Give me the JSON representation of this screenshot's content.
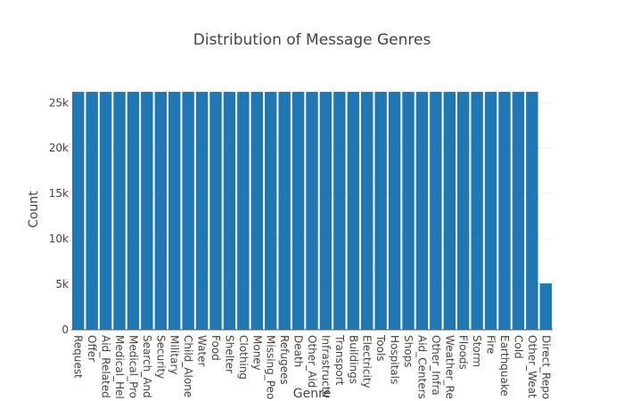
{
  "chart_data": {
    "type": "bar",
    "title": "Distribution of Message Genres",
    "xlabel": "Genre",
    "ylabel": "Count",
    "ylim": [
      0,
      26500
    ],
    "yticks": [
      0,
      5000,
      10000,
      15000,
      20000,
      25000
    ],
    "ytick_labels": [
      "0",
      "5k",
      "10k",
      "15k",
      "20k",
      "25k"
    ],
    "grid": true,
    "bar_color": "#1f77b4",
    "categories": [
      "Request",
      "Offer",
      "Aid_Related",
      "Medical_Hel",
      "Medical_Pro",
      "Search_And",
      "Security",
      "Military",
      "Child_Alone",
      "Water",
      "Food",
      "Shelter",
      "Clothing",
      "Money",
      "Missing_Peo",
      "Refugees",
      "Death",
      "Other_Aid",
      "Infrastructu",
      "Transport",
      "Buildings",
      "Electricity",
      "Tools",
      "Hospitals",
      "Shops",
      "Aid_Centers",
      "Other_Infra",
      "Weather_Re",
      "Floods",
      "Storm",
      "Fire",
      "Earthquake",
      "Cold",
      "Other_Weat",
      "Direct_Repo"
    ],
    "values": [
      26200,
      26200,
      26200,
      26200,
      26200,
      26200,
      26200,
      26200,
      26200,
      26200,
      26200,
      26200,
      26200,
      26200,
      26200,
      26200,
      26200,
      26200,
      26200,
      26200,
      26200,
      26200,
      26200,
      26200,
      26200,
      26200,
      26200,
      26200,
      26200,
      26200,
      26200,
      26200,
      26200,
      26200,
      5100
    ]
  }
}
